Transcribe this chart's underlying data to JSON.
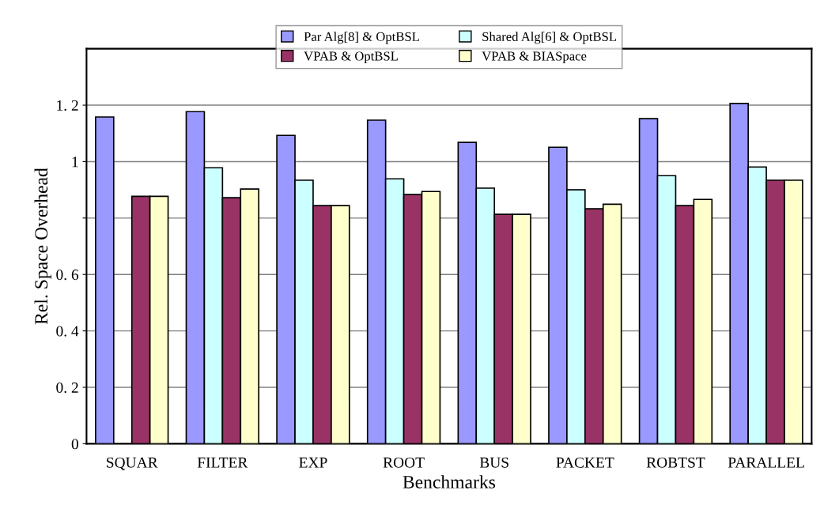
{
  "chart_data": {
    "type": "bar",
    "xlabel": "Benchmarks",
    "ylabel": "Rel. Space Overhead",
    "categories": [
      "SQUAR",
      "FILTER",
      "EXP",
      "ROOT",
      "BUS",
      "PACKET",
      "ROBTST",
      "PARALLEL"
    ],
    "series": [
      {
        "name": "Par Alg[8] & OptBSL",
        "color": "#9999ff",
        "values": [
          1.158,
          1.177,
          1.093,
          1.147,
          1.068,
          1.051,
          1.152,
          1.206
        ]
      },
      {
        "name": "Shared Alg[6] & OptBSL",
        "color": "#ccffff",
        "values": [
          null,
          0.978,
          0.934,
          0.939,
          0.906,
          0.9,
          0.95,
          0.981
        ]
      },
      {
        "name": "VPAB & OptBSL",
        "color": "#993366",
        "values": [
          0.877,
          0.872,
          0.844,
          0.883,
          0.813,
          0.833,
          0.844,
          0.934
        ]
      },
      {
        "name": "VPAB & BIASpace",
        "color": "#ffffcc",
        "values": [
          0.877,
          0.903,
          0.844,
          0.894,
          0.813,
          0.849,
          0.866,
          0.934
        ]
      }
    ],
    "ylim": [
      0,
      1.4
    ],
    "yticks": [
      0,
      {
        "value": 0.2,
        "label": "0. 2"
      },
      {
        "value": 0.4,
        "label": "0. 4"
      },
      {
        "value": 0.6,
        "label": "0. 6"
      },
      {
        "value": 0.8,
        "label": null
      },
      1,
      {
        "value": 1.2,
        "label": "1. 2"
      }
    ],
    "grid": "y",
    "legend": "top"
  }
}
